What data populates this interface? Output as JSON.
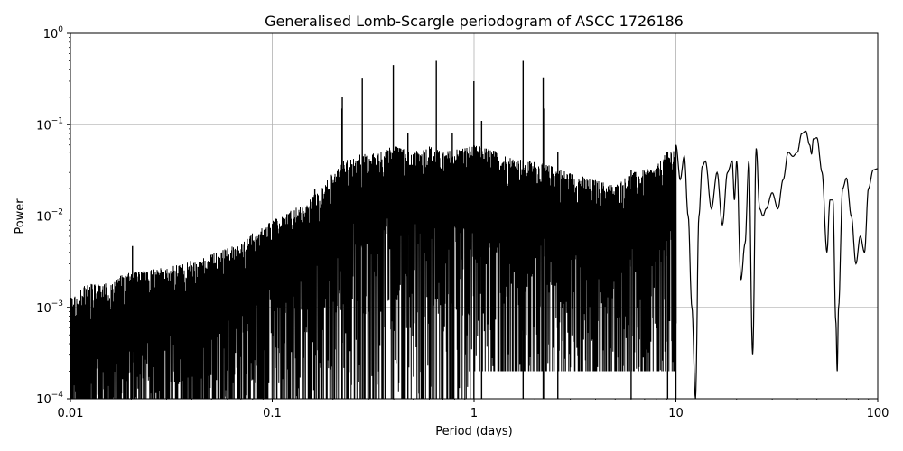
{
  "chart_data": {
    "type": "line",
    "title": "Generalised Lomb-Scargle periodogram of ASCC 1726186",
    "xlabel": "Period (days)",
    "ylabel": "Power",
    "xscale": "log",
    "yscale": "log",
    "xlim": [
      0.01,
      100
    ],
    "ylim": [
      0.0001,
      1
    ],
    "grid": true,
    "line_color": "#000000",
    "x_ticks": [
      {
        "value": 0.01,
        "label": "0.01"
      },
      {
        "value": 0.1,
        "label": "0.1"
      },
      {
        "value": 1,
        "label": "1"
      },
      {
        "value": 10,
        "label": "10"
      },
      {
        "value": 100,
        "label": "100"
      }
    ],
    "y_ticks": [
      {
        "value": 0.0001,
        "base": "10",
        "exp": "−4"
      },
      {
        "value": 0.001,
        "base": "10",
        "exp": "−3"
      },
      {
        "value": 0.01,
        "base": "10",
        "exp": "−2"
      },
      {
        "value": 0.1,
        "base": "10",
        "exp": "−1"
      },
      {
        "value": 1,
        "base": "10",
        "exp": "0"
      }
    ],
    "series": [
      {
        "envelope": [
          [
            0.01,
            0.0013
          ],
          [
            0.012,
            0.0018
          ],
          [
            0.015,
            0.0019
          ],
          [
            0.02,
            0.0025
          ],
          [
            0.025,
            0.0026
          ],
          [
            0.03,
            0.0028
          ],
          [
            0.04,
            0.0033
          ],
          [
            0.05,
            0.0038
          ],
          [
            0.06,
            0.0045
          ],
          [
            0.07,
            0.005
          ],
          [
            0.08,
            0.0065
          ],
          [
            0.09,
            0.0075
          ],
          [
            0.1,
            0.009
          ],
          [
            0.12,
            0.011
          ],
          [
            0.15,
            0.015
          ],
          [
            0.18,
            0.022
          ],
          [
            0.2,
            0.03
          ],
          [
            0.22,
            0.04
          ],
          [
            0.25,
            0.045
          ],
          [
            0.3,
            0.05
          ],
          [
            0.35,
            0.05
          ],
          [
            0.4,
            0.06
          ],
          [
            0.5,
            0.05
          ],
          [
            0.6,
            0.06
          ],
          [
            0.7,
            0.05
          ],
          [
            0.8,
            0.055
          ],
          [
            1.0,
            0.06
          ],
          [
            1.2,
            0.055
          ],
          [
            1.5,
            0.045
          ],
          [
            2.0,
            0.04
          ],
          [
            2.5,
            0.035
          ],
          [
            3.0,
            0.03
          ],
          [
            4.0,
            0.025
          ],
          [
            5.0,
            0.022
          ],
          [
            6.0,
            0.03
          ],
          [
            7.0,
            0.032
          ],
          [
            8.0,
            0.035
          ],
          [
            9.0,
            0.05
          ],
          [
            10.0,
            0.06
          ]
        ],
        "peaks": [
          [
            0.0203,
            0.0047
          ],
          [
            0.1625,
            0.02
          ],
          [
            0.2215,
            0.15
          ],
          [
            0.2793,
            0.32
          ],
          [
            0.2223,
            0.2
          ],
          [
            0.398,
            0.45
          ],
          [
            0.47,
            0.08
          ],
          [
            0.65,
            0.5
          ],
          [
            0.78,
            0.08
          ],
          [
            0.998,
            0.3
          ],
          [
            1.09,
            0.11
          ],
          [
            1.75,
            0.5
          ],
          [
            2.2,
            0.33
          ],
          [
            2.24,
            0.15
          ],
          [
            2.6,
            0.05
          ],
          [
            6.0,
            0.032
          ],
          [
            9.1,
            0.05
          ],
          [
            10.0,
            0.06
          ]
        ],
        "long_period": [
          [
            10.0,
            0.06
          ],
          [
            10.5,
            0.025
          ],
          [
            11.0,
            0.045
          ],
          [
            11.5,
            0.01
          ],
          [
            12.0,
            0.001
          ],
          [
            12.5,
            0.0001
          ],
          [
            13.0,
            0.01
          ],
          [
            13.5,
            0.035
          ],
          [
            14.0,
            0.04
          ],
          [
            15.0,
            0.012
          ],
          [
            16.0,
            0.03
          ],
          [
            17.0,
            0.008
          ],
          [
            18.0,
            0.03
          ],
          [
            19.0,
            0.04
          ],
          [
            19.5,
            0.015
          ],
          [
            20.0,
            0.04
          ],
          [
            21.0,
            0.002
          ],
          [
            22.0,
            0.005
          ],
          [
            23.0,
            0.04
          ],
          [
            24.0,
            0.0003
          ],
          [
            25.0,
            0.055
          ],
          [
            26.0,
            0.012
          ],
          [
            27.0,
            0.01
          ],
          [
            28.0,
            0.012
          ],
          [
            30.0,
            0.018
          ],
          [
            32.0,
            0.012
          ],
          [
            34.0,
            0.025
          ],
          [
            36.0,
            0.05
          ],
          [
            38.0,
            0.045
          ],
          [
            40.0,
            0.05
          ],
          [
            42.0,
            0.08
          ],
          [
            44.0,
            0.085
          ],
          [
            46.0,
            0.06
          ],
          [
            47.0,
            0.048
          ],
          [
            48.0,
            0.07
          ],
          [
            50.0,
            0.072
          ],
          [
            53.0,
            0.03
          ],
          [
            56.0,
            0.004
          ],
          [
            58.0,
            0.015
          ],
          [
            60.0,
            0.015
          ],
          [
            62.0,
            0.0007
          ],
          [
            63.0,
            0.0002
          ],
          [
            64.0,
            0.001
          ],
          [
            67.0,
            0.02
          ],
          [
            70.0,
            0.026
          ],
          [
            74.0,
            0.01
          ],
          [
            78.0,
            0.003
          ],
          [
            82.0,
            0.006
          ],
          [
            86.0,
            0.004
          ],
          [
            90.0,
            0.02
          ],
          [
            95.0,
            0.032
          ],
          [
            100.0,
            0.033
          ]
        ]
      }
    ]
  }
}
